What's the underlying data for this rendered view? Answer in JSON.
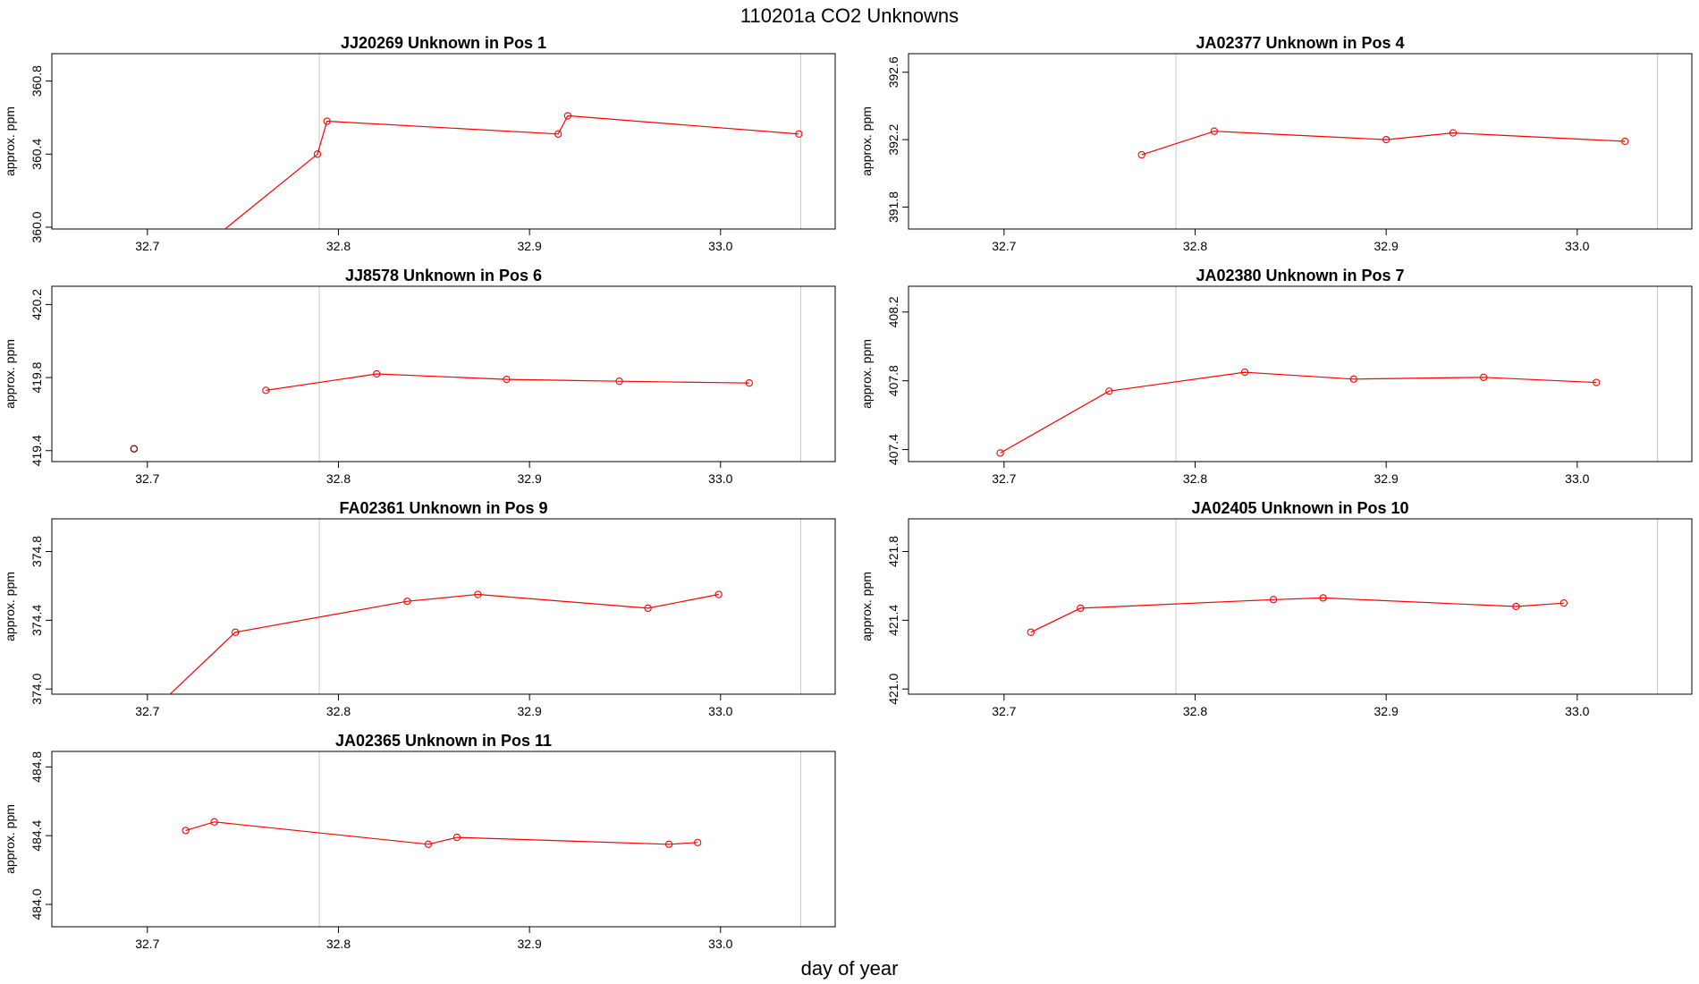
{
  "figure": {
    "title": "110201a  CO2 Unknowns",
    "xlabel": "day of year"
  },
  "chart_data": [
    {
      "type": "line",
      "title": "JJ20269    Unknown in Pos 1",
      "ylabel": "approx. ppm",
      "xlim": [
        32.65,
        33.06
      ],
      "ylim": [
        359.99,
        360.95
      ],
      "xticks": [
        "32.7",
        "32.8",
        "32.9",
        "33.0"
      ],
      "yticks": [
        "360.0",
        "360.4",
        "360.8"
      ],
      "ytick_values": [
        360.0,
        360.4,
        360.8
      ],
      "vlines": [
        32.79,
        33.042
      ],
      "series": [
        {
          "color": "#ff0000",
          "x": [
            32.73,
            32.789,
            32.794,
            32.915,
            32.92,
            33.041
          ],
          "y": [
            359.9,
            360.4,
            360.58,
            360.51,
            360.61,
            360.51
          ]
        }
      ],
      "extra_points": []
    },
    {
      "type": "line",
      "title": "JA02377    Unknown in Pos 4",
      "ylabel": "approx. ppm",
      "xlim": [
        32.65,
        33.06
      ],
      "ylim": [
        391.67,
        392.71
      ],
      "xticks": [
        "32.7",
        "32.8",
        "32.9",
        "33.0"
      ],
      "yticks": [
        "391.8",
        "392.2",
        "392.6"
      ],
      "ytick_values": [
        391.8,
        392.2,
        392.6
      ],
      "vlines": [
        32.79,
        33.042
      ],
      "series": [
        {
          "color": "#ff0000",
          "x": [
            32.772,
            32.81,
            32.9,
            32.935,
            33.025
          ],
          "y": [
            392.11,
            392.25,
            392.2,
            392.24,
            392.19
          ]
        }
      ],
      "extra_points": []
    },
    {
      "type": "line",
      "title": "JJ8578    Unknown in Pos 6",
      "ylabel": "approx. ppm",
      "xlim": [
        32.65,
        33.06
      ],
      "ylim": [
        419.34,
        420.3
      ],
      "xticks": [
        "32.7",
        "32.8",
        "32.9",
        "33.0"
      ],
      "yticks": [
        "419.4",
        "419.8",
        "420.2"
      ],
      "ytick_values": [
        419.4,
        419.8,
        420.2
      ],
      "vlines": [
        32.79,
        33.042
      ],
      "series": [
        {
          "color": "#ff0000",
          "x": [
            32.762,
            32.82,
            32.888,
            32.947,
            33.015
          ],
          "y": [
            419.73,
            419.82,
            419.79,
            419.78,
            419.77
          ]
        }
      ],
      "extra_points": [
        {
          "x": 32.693,
          "y": 419.41,
          "color": "#8b0000"
        }
      ]
    },
    {
      "type": "line",
      "title": "JA02380    Unknown in Pos 7",
      "ylabel": "approx. ppm",
      "xlim": [
        32.65,
        33.06
      ],
      "ylim": [
        407.33,
        408.35
      ],
      "xticks": [
        "32.7",
        "32.8",
        "32.9",
        "33.0"
      ],
      "yticks": [
        "407.4",
        "407.8",
        "408.2"
      ],
      "ytick_values": [
        407.4,
        407.8,
        408.2
      ],
      "vlines": [
        32.79,
        33.042
      ],
      "series": [
        {
          "color": "#ff0000",
          "x": [
            32.698,
            32.755,
            32.826,
            32.883,
            32.951,
            33.01
          ],
          "y": [
            407.38,
            407.74,
            407.85,
            407.81,
            407.82,
            407.79
          ]
        }
      ],
      "extra_points": []
    },
    {
      "type": "line",
      "title": "FA02361    Unknown in Pos 9",
      "ylabel": "approx. ppm",
      "xlim": [
        32.65,
        33.06
      ],
      "ylim": [
        373.97,
        374.99
      ],
      "xticks": [
        "32.7",
        "32.8",
        "32.9",
        "33.0"
      ],
      "yticks": [
        "374.0",
        "374.4",
        "374.8"
      ],
      "ytick_values": [
        374.0,
        374.4,
        374.8
      ],
      "vlines": [
        32.79,
        33.042
      ],
      "series": [
        {
          "color": "#ff0000",
          "x": [
            32.71,
            32.746,
            32.836,
            32.873,
            32.962,
            32.999
          ],
          "y": [
            373.95,
            374.33,
            374.51,
            374.55,
            374.47,
            374.55
          ]
        }
      ],
      "extra_points": []
    },
    {
      "type": "line",
      "title": "JA02405    Unknown in Pos 10",
      "ylabel": "approx. ppm",
      "xlim": [
        32.65,
        33.06
      ],
      "ylim": [
        420.97,
        421.99
      ],
      "xticks": [
        "32.7",
        "32.8",
        "32.9",
        "33.0"
      ],
      "yticks": [
        "421.0",
        "421.4",
        "421.8"
      ],
      "ytick_values": [
        421.0,
        421.4,
        421.8
      ],
      "vlines": [
        32.79,
        33.042
      ],
      "series": [
        {
          "color": "#ff0000",
          "x": [
            32.714,
            32.74,
            32.841,
            32.867,
            32.968,
            32.993
          ],
          "y": [
            421.33,
            421.47,
            421.52,
            421.53,
            421.48,
            421.5
          ]
        }
      ],
      "extra_points": []
    },
    {
      "type": "line",
      "title": "JA02365    Unknown in Pos 11",
      "ylabel": "approx. ppm",
      "xlim": [
        32.65,
        33.06
      ],
      "ylim": [
        483.87,
        484.89
      ],
      "xticks": [
        "32.7",
        "32.8",
        "32.9",
        "33.0"
      ],
      "yticks": [
        "484.0",
        "484.4",
        "484.8"
      ],
      "ytick_values": [
        484.0,
        484.4,
        484.8
      ],
      "vlines": [
        32.79,
        33.042
      ],
      "series": [
        {
          "color": "#ff0000",
          "x": [
            32.72,
            32.735,
            32.847,
            32.862,
            32.973,
            32.988
          ],
          "y": [
            484.43,
            484.48,
            484.35,
            484.39,
            484.35,
            484.36
          ]
        }
      ],
      "extra_points": []
    }
  ]
}
